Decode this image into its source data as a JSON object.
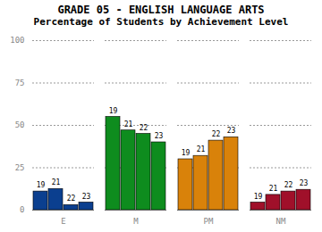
{
  "chart_data": {
    "type": "bar",
    "title": "GRADE 05 - ENGLISH LANGUAGE ARTS",
    "subtitle": "Percentage of Students by Achievement Level",
    "categories": [
      "E",
      "M",
      "PM",
      "NM"
    ],
    "colors": [
      "#0b3f8f",
      "#0e8c1e",
      "#d9820a",
      "#a0102a"
    ],
    "series": [
      {
        "name": "19",
        "values": [
          11,
          55,
          30,
          4.5
        ]
      },
      {
        "name": "21",
        "values": [
          12.5,
          47,
          32,
          9
        ]
      },
      {
        "name": "22",
        "values": [
          3,
          45,
          41,
          11
        ]
      },
      {
        "name": "23",
        "values": [
          4.5,
          40,
          43,
          12
        ]
      }
    ],
    "ylim": [
      0,
      100
    ],
    "yticks": [
      0,
      25,
      50,
      75,
      100
    ],
    "grid": true
  }
}
